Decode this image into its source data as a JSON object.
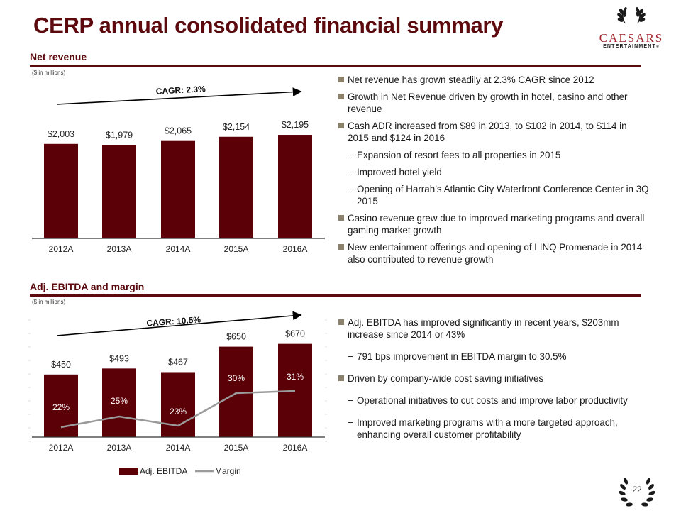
{
  "header": {
    "title": "CERP annual consolidated financial summary",
    "logo": {
      "icon": "laurel-wreath-icon",
      "brand": "CAESARS",
      "sub": "ENTERTAINMENT",
      "registered": "®"
    }
  },
  "sections": {
    "net_revenue": {
      "title": "Net revenue",
      "units": "($ in millions)"
    },
    "ebitda": {
      "title": "Adj. EBITDA and margin",
      "units": "($ in millions)"
    }
  },
  "chart_data": [
    {
      "type": "bar",
      "title": "Net revenue",
      "subtitle": "($ in millions)",
      "categories": [
        "2012A",
        "2013A",
        "2014A",
        "2015A",
        "2016A"
      ],
      "values": [
        2003,
        1979,
        2065,
        2154,
        2195
      ],
      "data_labels": [
        "$2,003",
        "$1,979",
        "$2,065",
        "$2,154",
        "$2,195"
      ],
      "annotation": "CAGR: 2.3%",
      "xlabel": "",
      "ylabel": "",
      "ylim": [
        0,
        2500
      ],
      "grid": false,
      "bar_color": "#5c0008"
    },
    {
      "type": "bar",
      "title": "Adj. EBITDA and margin",
      "subtitle": "($ in millions)",
      "categories": [
        "2012A",
        "2013A",
        "2014A",
        "2015A",
        "2016A"
      ],
      "series": [
        {
          "name": "Adj. EBITDA",
          "kind": "bar",
          "values": [
            450,
            493,
            467,
            650,
            670
          ],
          "labels": [
            "$450",
            "$493",
            "$467",
            "$650",
            "$670"
          ],
          "color": "#5c0008"
        },
        {
          "name": "Margin",
          "kind": "line",
          "values": [
            22,
            25,
            23,
            30,
            31
          ],
          "labels": [
            "22%",
            "25%",
            "23%",
            "30%",
            "31%"
          ],
          "unit": "%",
          "color": "#9a9a9a"
        }
      ],
      "annotation": "CAGR: 10.5%",
      "ylim": [
        0,
        850
      ],
      "y2lim": [
        18,
        50
      ],
      "legend": "bottom",
      "grid": false
    }
  ],
  "bullets": {
    "net_revenue": [
      {
        "level": 1,
        "text": "Net revenue has grown steadily at 2.3% CAGR since 2012"
      },
      {
        "level": 1,
        "text": "Growth in Net Revenue driven by growth in hotel, casino and other revenue"
      },
      {
        "level": 1,
        "text": "Cash ADR increased from $89 in 2013, to $102 in 2014, to $114 in 2015 and $124 in 2016"
      },
      {
        "level": 2,
        "text": "Expansion of resort fees to all properties in 2015"
      },
      {
        "level": 2,
        "text": "Improved hotel yield"
      },
      {
        "level": 2,
        "text": "Opening of Harrah’s Atlantic City Waterfront Conference Center in 3Q 2015"
      },
      {
        "level": 1,
        "text": "Casino revenue grew due to improved marketing programs and overall gaming market growth"
      },
      {
        "level": 1,
        "text": "New entertainment offerings and opening of LINQ Promenade in 2014 also contributed to revenue growth"
      }
    ],
    "ebitda": [
      {
        "level": 1,
        "text": "Adj. EBITDA has improved significantly in recent years, $203mm increase since 2014 or 43%"
      },
      {
        "level": 2,
        "text": "791 bps improvement in EBITDA margin to 30.5%"
      },
      {
        "level": 1,
        "text": "Driven by company-wide cost saving initiatives"
      },
      {
        "level": 2,
        "text": "Operational initiatives to cut costs and improve labor productivity"
      },
      {
        "level": 2,
        "text": "Improved marketing programs with a more targeted approach, enhancing overall customer profitability"
      }
    ]
  },
  "footer": {
    "page_number": "22",
    "icon": "laurel-wreath-icon"
  },
  "colors": {
    "brand": "#5c0a0e",
    "bar": "#5c0008",
    "line": "#9a9a9a",
    "bullet": "#8c826c",
    "logo_red": "#a3262e"
  }
}
